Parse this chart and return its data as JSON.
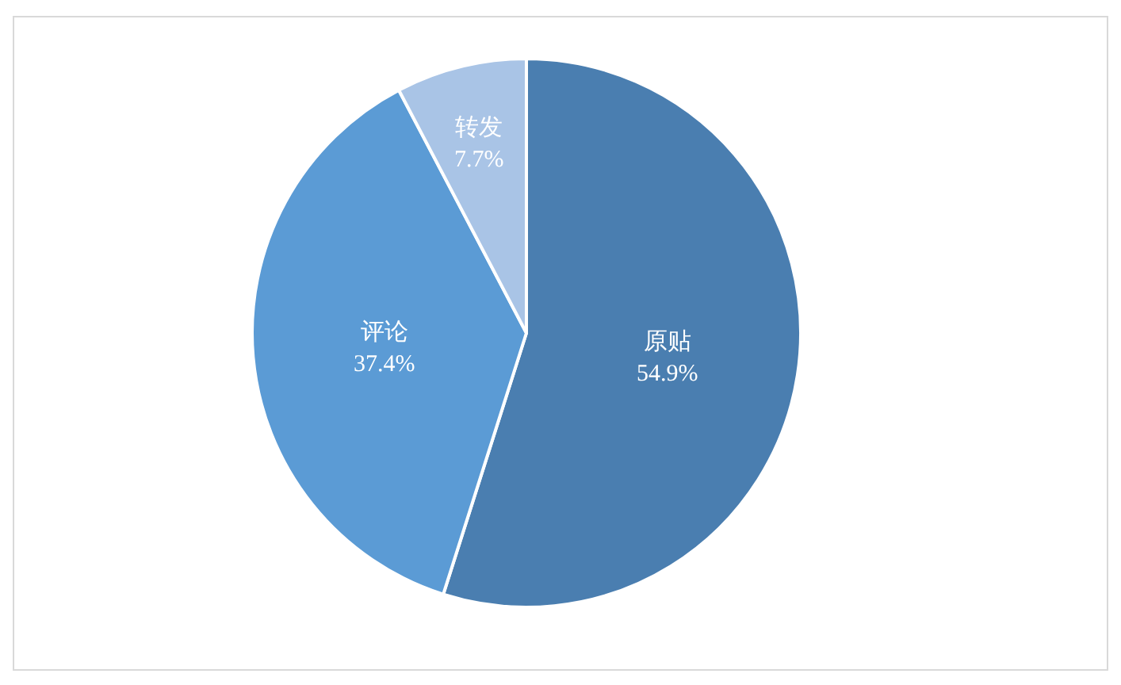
{
  "chart_data": {
    "type": "pie",
    "categories": [
      "原贴",
      "评论",
      "转发"
    ],
    "values": [
      54.9,
      37.4,
      7.7
    ],
    "value_labels": [
      "54.9%",
      "37.4%",
      "7.7%"
    ],
    "colors": [
      "#4a7eb0",
      "#5b9bd5",
      "#a9c4e6"
    ],
    "legend": false
  }
}
